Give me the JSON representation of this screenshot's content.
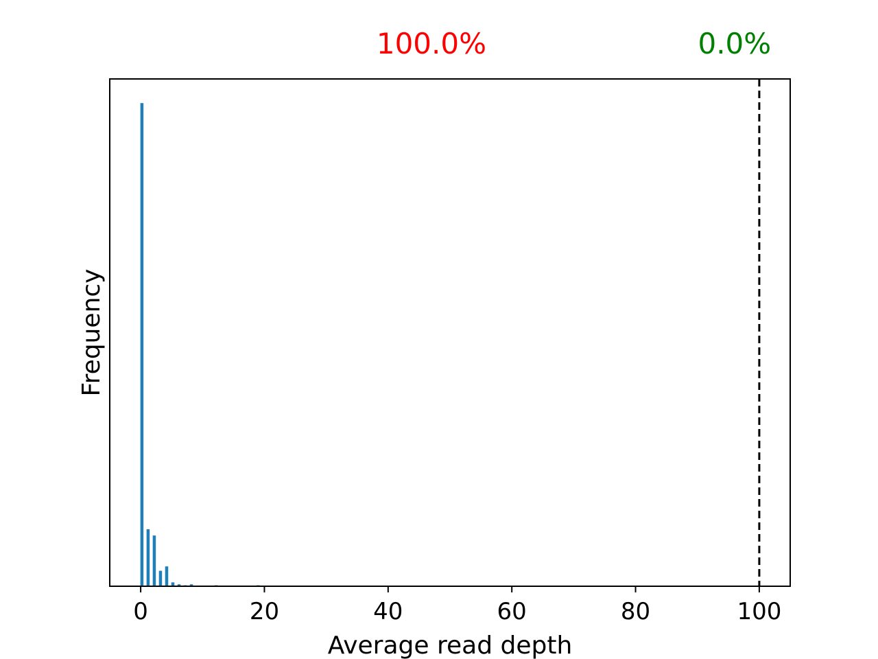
{
  "chart_data": {
    "type": "bar",
    "title": "",
    "xlabel": "Average read depth",
    "ylabel": "Frequency",
    "xlim": [
      -5,
      105
    ],
    "ylim": [
      0,
      1.05
    ],
    "y_ticks_shown": false,
    "grid": false,
    "x_ticks": [
      0,
      20,
      40,
      60,
      80,
      100
    ],
    "x_tick_labels": [
      "0",
      "20",
      "40",
      "60",
      "80",
      "100"
    ],
    "bar_color": "#1f7fb8",
    "bar_width": 0.5,
    "x": [
      0.2,
      1.2,
      2.2,
      3.2,
      4.2,
      5.2,
      6.2,
      7.2,
      8.2,
      12.2,
      19.0
    ],
    "values": [
      1.0,
      0.118,
      0.105,
      0.032,
      0.041,
      0.008,
      0.004,
      0.002,
      0.004,
      0.002,
      0.002
    ],
    "threshold": {
      "x": 100,
      "style": "dashed",
      "color": "#000000"
    },
    "annotations": [
      {
        "text": "100.0%",
        "color": "#ff0000",
        "x": 47
      },
      {
        "text": "0.0%",
        "color": "#008000",
        "x": 96
      }
    ]
  }
}
